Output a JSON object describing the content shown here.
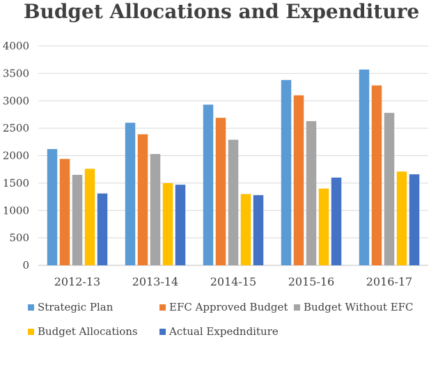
{
  "chart_data": {
    "type": "bar",
    "title": "Budget Allocations and Expenditure",
    "xlabel": "",
    "ylabel": "",
    "ylim": [
      0,
      4000
    ],
    "yticks": [
      0,
      500,
      1000,
      1500,
      2000,
      2500,
      3000,
      3500,
      4000
    ],
    "grid": true,
    "legend_position": "bottom",
    "categories": [
      "2012-13",
      "2013-14",
      "2014-15",
      "2015-16",
      "2016-17"
    ],
    "series": [
      {
        "name": "Strategic Plan",
        "color": "#5b9bd5",
        "values": [
          2120,
          2600,
          2930,
          3380,
          3570
        ]
      },
      {
        "name": "EFC Approved Budget",
        "color": "#ed7d31",
        "values": [
          1940,
          2390,
          2690,
          3100,
          3280
        ]
      },
      {
        "name": "Budget Without EFC",
        "color": "#a5a5a5",
        "values": [
          1650,
          2030,
          2290,
          2630,
          2780
        ]
      },
      {
        "name": "Budget Allocations",
        "color": "#ffc000",
        "values": [
          1760,
          1500,
          1300,
          1400,
          1710
        ]
      },
      {
        "name": "Actual Expednditure",
        "color": "#4472c4",
        "values": [
          1310,
          1470,
          1280,
          1600,
          1660
        ]
      }
    ]
  }
}
